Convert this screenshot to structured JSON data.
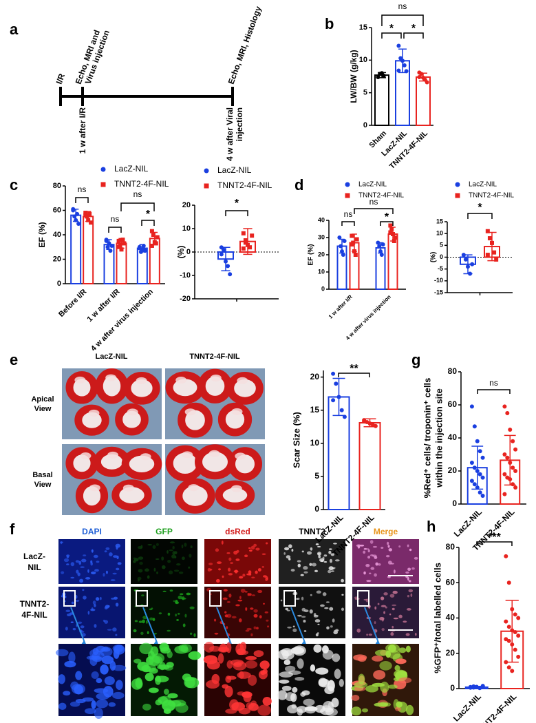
{
  "panel_letters": [
    "a",
    "b",
    "c",
    "d",
    "e",
    "f",
    "g",
    "h"
  ],
  "timeline": {
    "top_labels": [
      [
        "I/R"
      ],
      [
        "Echo, MRI and",
        "Virus injection"
      ],
      [
        "Echo, MRI, Histology"
      ]
    ],
    "bottom_labels": [
      [
        "1 w after I/R"
      ],
      [
        "4 w after Viral",
        "injection"
      ]
    ]
  },
  "photos": {
    "columns": [
      "LacZ-NIL",
      "TNNT2-4F-NIL"
    ],
    "rows": [
      [
        "Apical",
        "View"
      ],
      [
        "Basal",
        "View"
      ]
    ]
  },
  "microscopy": {
    "channels": [
      {
        "name": "DAPI",
        "color": "#1f5fd6"
      },
      {
        "name": "GFP",
        "color": "#1fa01f"
      },
      {
        "name": "dsRed",
        "color": "#d42020"
      },
      {
        "name": "TNNT2",
        "color": "#000000"
      },
      {
        "name": "Merge",
        "color": "#e8961e"
      }
    ],
    "rows": [
      [
        "LacZ-",
        "NIL"
      ],
      [
        "TNNT2-",
        "4F-NIL"
      ]
    ]
  },
  "chart_data": [
    {
      "type": "bar",
      "ylabel": "LW/BW (g/kg)",
      "categories": [
        "Sham",
        "LacZ-NIL",
        "TNNT2-4F-NIL"
      ],
      "series": [
        {
          "colors": [
            "#000000",
            "#1a3fe0",
            "#e8231f"
          ],
          "values": [
            7.7,
            9.9,
            7.4
          ],
          "errors": [
            0.4,
            1.8,
            0.6
          ],
          "points": [
            [
              7.4,
              7.9,
              8.0,
              7.6
            ],
            [
              12.2,
              10.3,
              9.9,
              9.2,
              8.3,
              8.4
            ],
            [
              8.1,
              7.9,
              7.3,
              7.0,
              6.6,
              7.4
            ]
          ]
        }
      ],
      "ylim": [
        0,
        15
      ],
      "yticks": [
        0,
        5,
        10,
        15
      ],
      "annotations": [
        "ns",
        "*",
        "*"
      ]
    },
    {
      "type": "bar",
      "ylabel": "EF (%)",
      "categories": [
        "Before I/R",
        "1 w after I/R",
        "4 w after virus injection"
      ],
      "series": [
        {
          "name": "LacZ-NIL",
          "color": "#1a3fe0",
          "values": [
            56,
            32,
            29
          ],
          "errors": [
            5,
            4,
            3
          ],
          "points": [
            [
              61,
              55,
              52,
              57,
              49,
              60
            ],
            [
              36,
              30,
              33,
              27,
              31,
              35
            ],
            [
              30,
              26,
              28,
              31,
              27,
              29
            ]
          ]
        },
        {
          "name": "TNNT2-4F-NIL",
          "color": "#e8231f",
          "values": [
            55,
            33,
            37
          ],
          "errors": [
            4,
            4,
            5
          ],
          "points": [
            [
              58,
              55,
              52,
              57,
              50,
              56
            ],
            [
              35,
              31,
              28,
              36,
              33,
              30
            ],
            [
              43,
              40,
              34,
              33,
              38,
              31
            ]
          ]
        }
      ],
      "ylim": [
        0,
        80
      ],
      "yticks": [
        0,
        20,
        40,
        60,
        80
      ],
      "annotations": [
        "ns",
        "ns",
        "ns",
        "*"
      ],
      "legend": true
    },
    {
      "type": "bar",
      "ylabel": "(%)",
      "categories": [
        null
      ],
      "series": [
        {
          "name": "LacZ-NIL",
          "color": "#1a3fe0",
          "values": [
            -3
          ],
          "errors": [
            5
          ],
          "points": [
            [
              2,
              1,
              -4,
              -6,
              -9.5,
              -1
            ]
          ]
        },
        {
          "name": "TNNT2-4F-NIL",
          "color": "#e8231f",
          "values": [
            4.5
          ],
          "errors": [
            5.5
          ],
          "points": [
            [
              8,
              5,
              3,
              2,
              7,
              1.5,
              4
            ]
          ]
        }
      ],
      "ylim": [
        -20,
        20
      ],
      "yticks": [
        -20,
        -10,
        0,
        10,
        20
      ],
      "zero_line": true,
      "annotations": [
        "*"
      ],
      "legend": true
    },
    {
      "type": "bar",
      "ylabel": "EF (%)",
      "categories": [
        "1 w after I/R",
        "4 w after virus injection"
      ],
      "series": [
        {
          "name": "LacZ-NIL",
          "color": "#1a3fe0",
          "values": [
            25,
            24
          ],
          "errors": [
            4,
            3
          ],
          "points": [
            [
              30,
              25,
              22,
              20,
              28
            ],
            [
              27,
              25,
              22,
              20,
              26
            ]
          ]
        },
        {
          "name": "TNNT2-4F-NIL",
          "color": "#e8231f",
          "values": [
            27,
            32
          ],
          "errors": [
            5,
            4
          ],
          "points": [
            [
              31,
              27,
              22,
              20,
              29,
              26
            ],
            [
              37,
              35,
              32,
              28,
              30,
              33
            ]
          ]
        }
      ],
      "ylim": [
        0,
        40
      ],
      "yticks": [
        0,
        10,
        20,
        30,
        40
      ],
      "annotations": [
        "ns",
        "ns",
        "*"
      ],
      "legend": true
    },
    {
      "type": "bar",
      "ylabel": "(%)",
      "categories": [
        null
      ],
      "series": [
        {
          "name": "LacZ-NIL",
          "color": "#1a3fe0",
          "values": [
            -3
          ],
          "errors": [
            4
          ],
          "points": [
            [
              1,
              -1,
              -4,
              -7,
              -3
            ]
          ]
        },
        {
          "name": "TNNT2-4F-NIL",
          "color": "#e8231f",
          "values": [
            4.5
          ],
          "errors": [
            6
          ],
          "points": [
            [
              11,
              8,
              6,
              2,
              -1,
              1
            ]
          ]
        }
      ],
      "ylim": [
        -15,
        15
      ],
      "yticks": [
        -15,
        -10,
        -5,
        0,
        5,
        10,
        15
      ],
      "zero_line": true,
      "annotations": [
        "*"
      ],
      "legend": true
    },
    {
      "type": "bar",
      "ylabel": "Scar Size (%)",
      "categories": [
        "LacZ-NIL",
        "TNNT2-4F-NIL"
      ],
      "series": [
        {
          "colors": [
            "#1a3fe0",
            "#e8231f"
          ],
          "values": [
            17,
            13.1
          ],
          "errors": [
            2.8,
            0.6
          ],
          "points": [
            [
              20.5,
              19,
              17,
              15,
              14,
              16.5
            ],
            [
              13.5,
              13.2,
              13,
              12.8,
              12.6,
              13.3
            ]
          ]
        }
      ],
      "ylim": [
        0,
        21
      ],
      "yticks": [
        0,
        5,
        10,
        15,
        20
      ],
      "annotations": [
        "**"
      ]
    },
    {
      "type": "bar",
      "ylabel": [
        "%Red⁺ cells/ troponin⁺ cells",
        "within the injection site"
      ],
      "categories": [
        "LacZ-NIL",
        "TNNT2-4F-NIL"
      ],
      "series": [
        {
          "colors": [
            "#1a3fe0",
            "#e8231f"
          ],
          "values": [
            22,
            26.5
          ],
          "errors": [
            13,
            15
          ],
          "points": [
            [
              59,
              47,
              38,
              32,
              28,
              25,
              22,
              20,
              18,
              16,
              14,
              12,
              10,
              7,
              5
            ],
            [
              59,
              55,
              45,
              38,
              33,
              30,
              28,
              25,
              22,
              20,
              18,
              16,
              15,
              12,
              10,
              6
            ]
          ]
        }
      ],
      "ylim": [
        0,
        80
      ],
      "yticks": [
        0,
        20,
        40,
        60,
        80
      ],
      "annotations": [
        "ns"
      ]
    },
    {
      "type": "bar",
      "ylabel": "%GFP⁺/total labelled cells",
      "categories": [
        "LacZ-NIL",
        "TNNT2-4F-NIL"
      ],
      "series": [
        {
          "colors": [
            "#1a3fe0",
            "#e8231f"
          ],
          "values": [
            0.8,
            32.5
          ],
          "errors": [
            0.4,
            17.5
          ],
          "points": [
            [
              0.5,
              1.2,
              0.8,
              0.3,
              1.5,
              0.9,
              0.6,
              1.0,
              0.4,
              1.1
            ],
            [
              75,
              60,
              45,
              42,
              40,
              38,
              35,
              33,
              32,
              30,
              28,
              27,
              25,
              22,
              18,
              15,
              12,
              10
            ]
          ]
        }
      ],
      "ylim": [
        0,
        80
      ],
      "yticks": [
        0,
        20,
        40,
        60,
        80
      ],
      "annotations": [
        "***"
      ]
    }
  ]
}
